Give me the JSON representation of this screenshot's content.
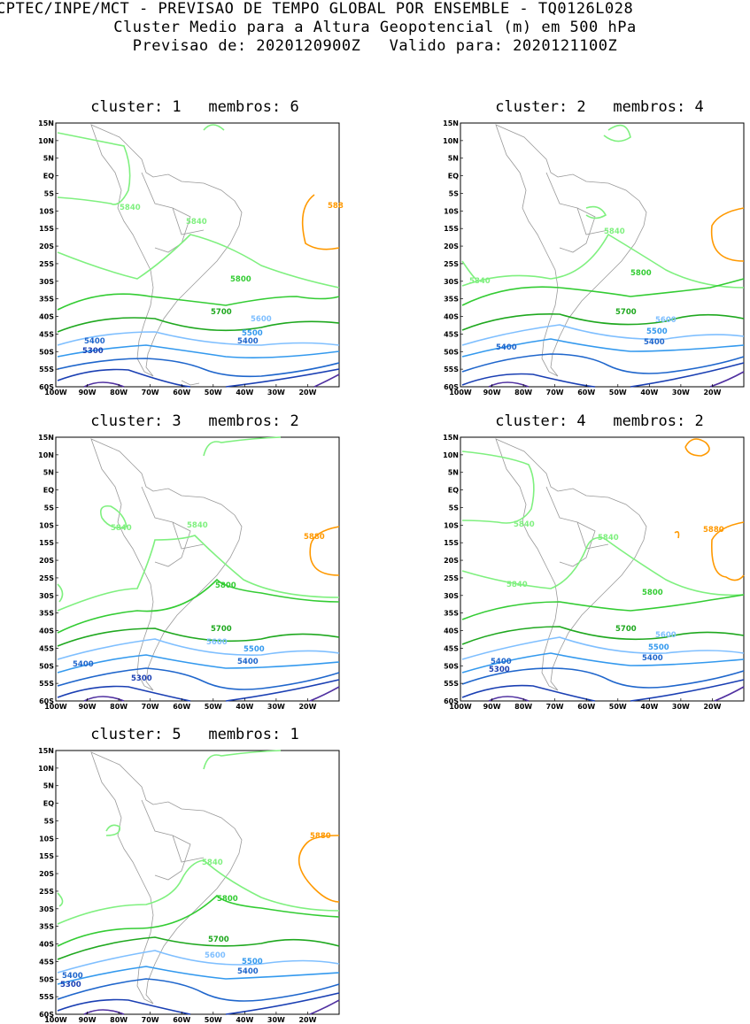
{
  "header": {
    "line1": "CPTEC/INPE/MCT - PREVISAO DE TEMPO GLOBAL POR ENSEMBLE - TQ0126L028",
    "line2": "Cluster Medio para a Altura Geopotencial (m) em 500 hPa",
    "line3": "Previsao de: 2020120900Z   Valido para: 2020121100Z"
  },
  "axis": {
    "lat_labels": [
      "15N",
      "10N",
      "5N",
      "EQ",
      "5S",
      "10S",
      "15S",
      "20S",
      "25S",
      "30S",
      "35S",
      "40S",
      "45S",
      "50S",
      "55S",
      "60S"
    ],
    "lon_labels": [
      "100W",
      "90W",
      "80W",
      "70W",
      "60W",
      "50W",
      "40W",
      "30W",
      "20W"
    ]
  },
  "contour_colors": {
    "5880": "#ff9900",
    "5840": "#7ff07f",
    "5800": "#33cc33",
    "5700": "#1fa81f",
    "5600": "#7fbfff",
    "5500": "#3399ee",
    "5400": "#1f66cc",
    "5300": "#1a3fb3",
    "low": "#5030a0"
  },
  "panels": [
    {
      "title": "cluster: 1   membros: 6",
      "labels": {
        "l5840a": "5840",
        "l5840b": "5840",
        "l5880": "588",
        "l5800": "5800",
        "l5700": "5700",
        "l5600": "5600",
        "l5500": "5500",
        "l5400a": "5400",
        "l5400b": "5400",
        "l5300": "5300"
      }
    },
    {
      "title": "cluster: 2   membros: 4",
      "labels": {
        "l5840a": "5840",
        "l5840b": "5840",
        "l5800": "5800",
        "l5700": "5700",
        "l5600": "5600",
        "l5500": "5500",
        "l5400a": "5400",
        "l5400b": "5400"
      }
    },
    {
      "title": "cluster: 3   membros: 2",
      "labels": {
        "l5840a": "5840",
        "l5840b": "5840",
        "l5880": "5880",
        "l5800": "5800",
        "l5700": "5700",
        "l5600": "5600",
        "l5500": "5500",
        "l5400a": "5400",
        "l5400b": "5400",
        "l5300": "5300"
      }
    },
    {
      "title": "cluster: 4   membros: 2",
      "labels": {
        "l5840a": "5840",
        "l5840b": "5840",
        "l5840c": "5840",
        "l5880": "5880",
        "l5800": "5800",
        "l5700": "5700",
        "l5600": "5600",
        "l5500": "5500",
        "l5400a": "5400",
        "l5400b": "5400",
        "l5300": "5300"
      }
    },
    {
      "title": "cluster: 5   membros: 1",
      "labels": {
        "l5840a": "5840",
        "l5880": "5880",
        "l5800": "5800",
        "l5700": "5700",
        "l5600": "5600",
        "l5500": "5500",
        "l5400a": "5400",
        "l5400b": "5400",
        "l5300": "5300"
      }
    }
  ]
}
